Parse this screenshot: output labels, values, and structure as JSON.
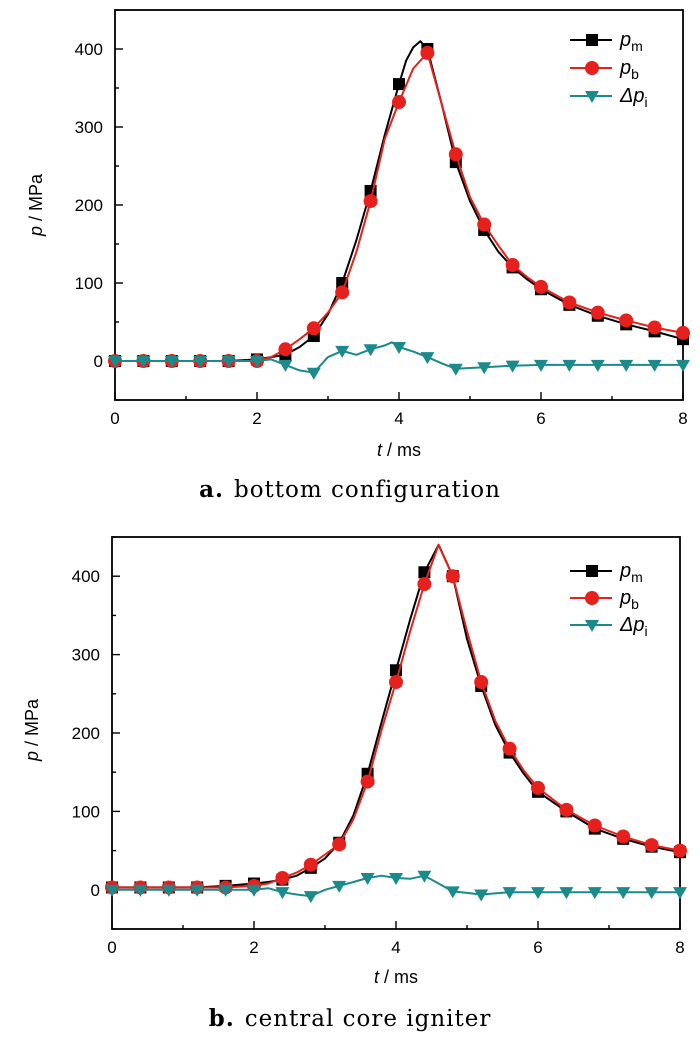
{
  "chart_data": [
    {
      "type": "line",
      "caption_letter": "a.",
      "caption": "bottom configuration",
      "xlabel_var": "t",
      "xlabel_unit": " / ms",
      "ylabel_var": "p",
      "ylabel_unit": " / MPa",
      "xlim": [
        0,
        8
      ],
      "ylim": [
        -50,
        450
      ],
      "xticks": [
        0,
        2,
        4,
        6,
        8
      ],
      "yticks": [
        0,
        100,
        200,
        300,
        400
      ],
      "legend_position": "top-right",
      "series": [
        {
          "name": "p_m",
          "label_main": "p",
          "label_sub": "m",
          "color": "#000000",
          "marker": "square",
          "x": [
            0,
            0.4,
            0.8,
            1.2,
            1.6,
            2.0,
            2.2,
            2.4,
            2.6,
            2.8,
            3.0,
            3.2,
            3.4,
            3.6,
            3.8,
            4.0,
            4.1,
            4.2,
            4.3,
            4.4,
            4.6,
            4.8,
            5.0,
            5.2,
            5.4,
            5.6,
            5.8,
            6.0,
            6.4,
            6.8,
            7.2,
            7.6,
            8.0
          ],
          "y": [
            0,
            0,
            0,
            0,
            0,
            2,
            5,
            8,
            18,
            32,
            60,
            100,
            155,
            218,
            290,
            355,
            385,
            402,
            410,
            400,
            330,
            255,
            205,
            168,
            140,
            120,
            105,
            92,
            72,
            58,
            47,
            38,
            28
          ],
          "marker_x": [
            0,
            0.4,
            0.8,
            1.2,
            1.6,
            2.0,
            2.4,
            2.8,
            3.2,
            3.6,
            4.0,
            4.4,
            4.8,
            5.2,
            5.6,
            6.0,
            6.4,
            6.8,
            7.2,
            7.6,
            8.0
          ]
        },
        {
          "name": "p_b",
          "label_main": "p",
          "label_sub": "b",
          "color": "#e6201c",
          "marker": "circle",
          "x": [
            0,
            0.4,
            0.8,
            1.2,
            1.6,
            2.0,
            2.2,
            2.4,
            2.6,
            2.8,
            3.0,
            3.2,
            3.4,
            3.6,
            3.8,
            4.0,
            4.2,
            4.4,
            4.6,
            4.8,
            5.0,
            5.2,
            5.4,
            5.6,
            5.8,
            6.0,
            6.4,
            6.8,
            7.2,
            7.6,
            8.0
          ],
          "y": [
            0,
            0,
            0,
            0,
            0,
            0,
            5,
            15,
            28,
            42,
            62,
            88,
            140,
            205,
            285,
            332,
            375,
            395,
            330,
            265,
            210,
            175,
            148,
            123,
            108,
            95,
            75,
            62,
            52,
            43,
            36
          ],
          "marker_x": [
            0,
            0.4,
            0.8,
            1.2,
            1.6,
            2.0,
            2.4,
            2.8,
            3.2,
            3.6,
            4.0,
            4.4,
            4.8,
            5.2,
            5.6,
            6.0,
            6.4,
            6.8,
            7.2,
            7.6,
            8.0
          ]
        },
        {
          "name": "Δp_i",
          "label_main": "Δp",
          "label_sub": "i",
          "color": "#1a8a8a",
          "marker": "triangle-down",
          "x": [
            0,
            0.4,
            0.8,
            1.2,
            1.6,
            2.0,
            2.2,
            2.4,
            2.6,
            2.8,
            3.0,
            3.2,
            3.4,
            3.6,
            3.8,
            3.9,
            4.0,
            4.2,
            4.4,
            4.6,
            4.8,
            5.2,
            5.6,
            6.0,
            6.4,
            6.8,
            7.2,
            7.6,
            8.0
          ],
          "y": [
            0,
            0,
            0,
            0,
            0,
            0,
            2,
            -5,
            -12,
            -15,
            5,
            13,
            8,
            15,
            20,
            24,
            18,
            12,
            5,
            -3,
            -10,
            -8,
            -6,
            -5,
            -5,
            -5,
            -5,
            -5,
            -5
          ],
          "marker_x": [
            0,
            0.4,
            0.8,
            1.2,
            1.6,
            2.0,
            2.4,
            2.8,
            3.2,
            3.6,
            4.0,
            4.4,
            4.8,
            5.2,
            5.6,
            6.0,
            6.4,
            6.8,
            7.2,
            7.6,
            8.0
          ]
        }
      ]
    },
    {
      "type": "line",
      "caption_letter": "b.",
      "caption": "central core igniter",
      "xlabel_var": "t",
      "xlabel_unit": " / ms",
      "ylabel_var": "p",
      "ylabel_unit": " / MPa",
      "xlim": [
        0,
        8
      ],
      "ylim": [
        -50,
        450
      ],
      "xticks": [
        0,
        2,
        4,
        6,
        8
      ],
      "yticks": [
        0,
        100,
        200,
        300,
        400
      ],
      "legend_position": "top-right",
      "series": [
        {
          "name": "p_m",
          "label_main": "p",
          "label_sub": "m",
          "color": "#000000",
          "marker": "square",
          "x": [
            0,
            0.4,
            0.8,
            1.2,
            1.6,
            2.0,
            2.2,
            2.4,
            2.6,
            2.8,
            3.0,
            3.2,
            3.4,
            3.6,
            3.8,
            4.0,
            4.2,
            4.4,
            4.6,
            4.8,
            5.0,
            5.2,
            5.4,
            5.6,
            5.8,
            6.0,
            6.4,
            6.8,
            7.2,
            7.6,
            8.0
          ],
          "y": [
            3,
            3,
            3,
            3,
            5,
            8,
            10,
            13,
            18,
            28,
            40,
            60,
            95,
            148,
            215,
            280,
            345,
            405,
            440,
            400,
            320,
            260,
            210,
            175,
            148,
            125,
            100,
            78,
            65,
            55,
            48
          ],
          "marker_x": [
            0,
            0.4,
            0.8,
            1.2,
            1.6,
            2.0,
            2.4,
            2.8,
            3.2,
            3.6,
            4.0,
            4.4,
            4.8,
            5.2,
            5.6,
            6.0,
            6.4,
            6.8,
            7.2,
            7.6,
            8.0
          ]
        },
        {
          "name": "p_b",
          "label_main": "p",
          "label_sub": "b",
          "color": "#e6201c",
          "marker": "circle",
          "x": [
            0,
            0.4,
            0.8,
            1.2,
            1.6,
            2.0,
            2.2,
            2.4,
            2.6,
            2.8,
            3.0,
            3.2,
            3.4,
            3.6,
            3.8,
            4.0,
            4.2,
            4.4,
            4.6,
            4.8,
            5.0,
            5.2,
            5.4,
            5.6,
            5.8,
            6.0,
            6.4,
            6.8,
            7.2,
            7.6,
            8.0
          ],
          "y": [
            3,
            3,
            3,
            3,
            3,
            5,
            8,
            15,
            22,
            32,
            45,
            58,
            90,
            138,
            205,
            265,
            330,
            390,
            440,
            400,
            330,
            265,
            215,
            180,
            152,
            130,
            102,
            82,
            68,
            57,
            50
          ],
          "marker_x": [
            0,
            0.4,
            0.8,
            1.2,
            1.6,
            2.0,
            2.4,
            2.8,
            3.2,
            3.6,
            4.0,
            4.4,
            4.8,
            5.2,
            5.6,
            6.0,
            6.4,
            6.8,
            7.2,
            7.6,
            8.0
          ]
        },
        {
          "name": "Δp_i",
          "label_main": "Δp",
          "label_sub": "i",
          "color": "#1a8a8a",
          "marker": "triangle-down",
          "x": [
            0,
            0.4,
            0.8,
            1.2,
            1.6,
            2.0,
            2.2,
            2.4,
            2.6,
            2.8,
            3.0,
            3.2,
            3.4,
            3.6,
            3.8,
            4.0,
            4.2,
            4.4,
            4.6,
            4.8,
            5.0,
            5.2,
            5.6,
            6.0,
            6.4,
            6.8,
            7.2,
            7.6,
            8.0
          ],
          "y": [
            0,
            0,
            0,
            0,
            0,
            0,
            2,
            -3,
            -6,
            -8,
            0,
            5,
            10,
            15,
            18,
            15,
            14,
            18,
            8,
            -2,
            -4,
            -6,
            -3,
            -3,
            -3,
            -3,
            -3,
            -3,
            -3
          ],
          "marker_x": [
            0,
            0.4,
            0.8,
            1.2,
            1.6,
            2.0,
            2.4,
            2.8,
            3.2,
            3.6,
            4.0,
            4.4,
            4.8,
            5.2,
            5.6,
            6.0,
            6.4,
            6.8,
            7.2,
            7.6,
            8.0
          ]
        }
      ]
    }
  ]
}
